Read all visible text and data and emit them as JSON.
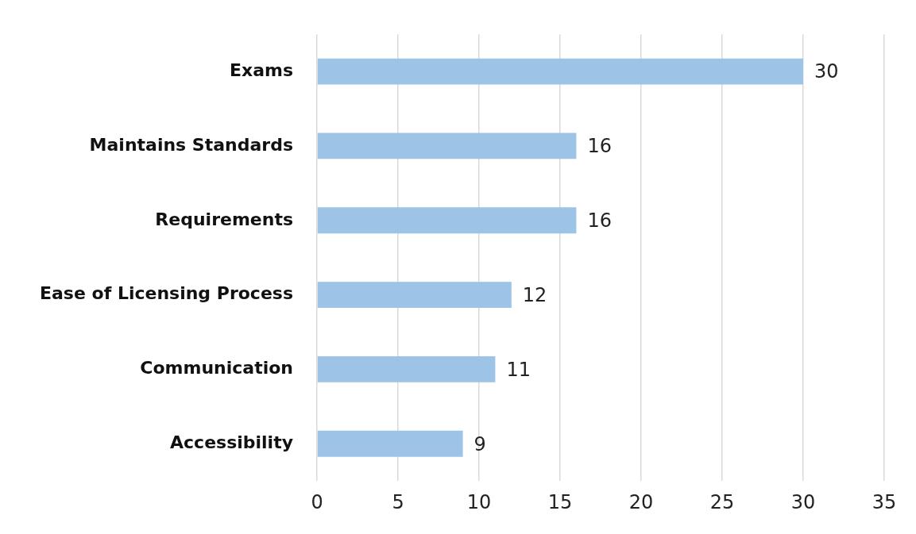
{
  "chart_data": {
    "type": "bar",
    "orientation": "horizontal",
    "categories": [
      "Exams",
      "Maintains Standards",
      "Requirements",
      "Ease of Licensing Process",
      "Communication",
      "Accessibility"
    ],
    "values": [
      30,
      16,
      16,
      12,
      11,
      9
    ],
    "color": "#9dc3e6",
    "xlim": [
      0,
      35
    ],
    "xticks": [
      0,
      5,
      10,
      15,
      20,
      25,
      30,
      35
    ],
    "grid": "x",
    "legend": false,
    "data_labels": true
  }
}
